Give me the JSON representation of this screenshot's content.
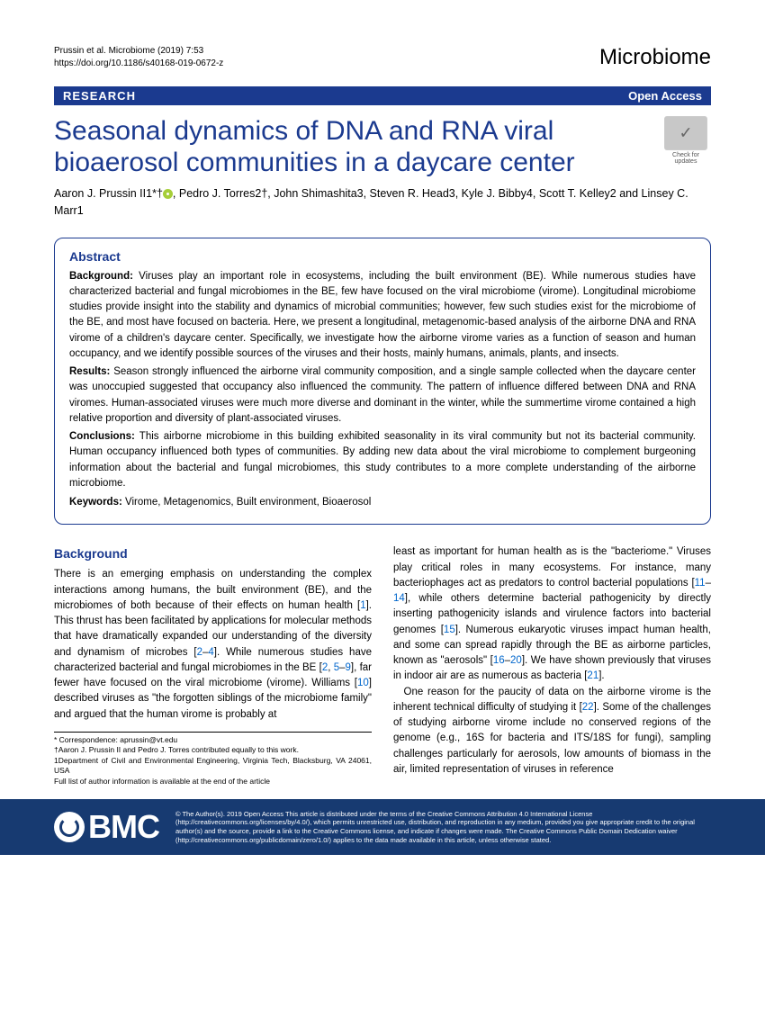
{
  "header": {
    "citation_line1": "Prussin et al. Microbiome          (2019) 7:53",
    "citation_line2": "https://doi.org/10.1186/s40168-019-0672-z",
    "journal": "Microbiome"
  },
  "bar": {
    "left": "RESEARCH",
    "right": "Open Access"
  },
  "title": "Seasonal dynamics of DNA and RNA viral bioaerosol communities in a daycare center",
  "check_updates": "Check for updates",
  "authors": {
    "list": "Aaron J. Prussin II1*†",
    "rest": ", Pedro J. Torres2†, John Shimashita3, Steven R. Head3, Kyle J. Bibby4, Scott T. Kelley2 and Linsey C. Marr1"
  },
  "abstract": {
    "heading": "Abstract",
    "background_label": "Background:",
    "background_text": " Viruses play an important role in ecosystems, including the built environment (BE). While numerous studies have characterized bacterial and fungal microbiomes in the BE, few have focused on the viral microbiome (virome). Longitudinal microbiome studies provide insight into the stability and dynamics of microbial communities; however, few such studies exist for the microbiome of the BE, and most have focused on bacteria. Here, we present a longitudinal, metagenomic-based analysis of the airborne DNA and RNA virome of a children's daycare center. Specifically, we investigate how the airborne virome varies as a function of season and human occupancy, and we identify possible sources of the viruses and their hosts, mainly humans, animals, plants, and insects.",
    "results_label": "Results:",
    "results_text": " Season strongly influenced the airborne viral community composition, and a single sample collected when the daycare center was unoccupied suggested that occupancy also influenced the community. The pattern of influence differed between DNA and RNA viromes. Human-associated viruses were much more diverse and dominant in the winter, while the summertime virome contained a high relative proportion and diversity of plant-associated viruses.",
    "conclusions_label": "Conclusions:",
    "conclusions_text": " This airborne microbiome in this building exhibited seasonality in its viral community but not its bacterial community. Human occupancy influenced both types of communities. By adding new data about the viral microbiome to complement burgeoning information about the bacterial and fungal microbiomes, this study contributes to a more complete understanding of the airborne microbiome.",
    "keywords_label": "Keywords:",
    "keywords_text": " Virome, Metagenomics, Built environment, Bioaerosol"
  },
  "body": {
    "section_heading": "Background",
    "col1_p1a": "There is an emerging emphasis on understanding the complex interactions among humans, the built environment (BE), and the microbiomes of both because of their effects on human health [",
    "ref1": "1",
    "col1_p1b": "]. This thrust has been facilitated by applications for molecular methods that have dramatically expanded our understanding of the diversity and dynamism of microbes [",
    "ref2": "2",
    "ref3": "4",
    "col1_p1c": "]. While numerous studies have characterized bacterial and fungal microbiomes in the BE [",
    "ref4": "2",
    "ref5": "5",
    "ref6": "9",
    "col1_p1d": "], far fewer have focused on the viral microbiome (virome). Williams [",
    "ref7": "10",
    "col1_p1e": "] described viruses as \"the forgotten siblings of the microbiome family\" and argued that the human virome is probably at",
    "col2_p1a": "least as important for human health as is the \"bacteriome.\" Viruses play critical roles in many ecosystems. For instance, many bacteriophages act as predators to control bacterial populations [",
    "ref8": "11",
    "ref9": "14",
    "col2_p1b": "], while others determine bacterial pathogenicity by directly inserting pathogenicity islands and virulence factors into bacterial genomes [",
    "ref10": "15",
    "col2_p1c": "]. Numerous eukaryotic viruses impact human health, and some can spread rapidly through the BE as airborne particles, known as \"aerosols\" [",
    "ref11": "16",
    "ref12": "20",
    "col2_p1d": "]. We have shown previously that viruses in indoor air are as numerous as bacteria [",
    "ref13": "21",
    "col2_p1e": "].",
    "col2_p2a": "One reason for the paucity of data on the airborne virome is the inherent technical difficulty of studying it [",
    "ref14": "22",
    "col2_p2b": "]. Some of the challenges of studying airborne virome include no conserved regions of the genome (e.g., 16S for bacteria and ITS/18S for fungi), sampling challenges particularly for aerosols, low amounts of biomass in the air, limited representation of viruses in reference"
  },
  "footnotes": {
    "l1": "* Correspondence: aprussin@vt.edu",
    "l2": "†Aaron J. Prussin II and Pedro J. Torres contributed equally to this work.",
    "l3": "1Department of Civil and Environmental Engineering, Virginia Tech, Blacksburg, VA 24061, USA",
    "l4": "Full list of author information is available at the end of the article"
  },
  "footer": {
    "logo": "BMC",
    "text": "© The Author(s). 2019 Open Access This article is distributed under the terms of the Creative Commons Attribution 4.0 International License (http://creativecommons.org/licenses/by/4.0/), which permits unrestricted use, distribution, and reproduction in any medium, provided you give appropriate credit to the original author(s) and the source, provide a link to the Creative Commons license, and indicate if changes were made. The Creative Commons Public Domain Dedication waiver (http://creativecommons.org/publicdomain/zero/1.0/) applies to the data made available in this article, unless otherwise stated."
  }
}
